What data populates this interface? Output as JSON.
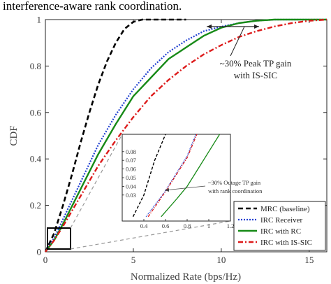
{
  "caption": "interference-aware rank coordination.",
  "chart_data": {
    "type": "line",
    "xlabel": "Normalized Rate (bps/Hz)",
    "ylabel": "CDF",
    "xlim": [
      0,
      16
    ],
    "ylim": [
      0,
      1
    ],
    "xticks": [
      0,
      5,
      10,
      15
    ],
    "yticks": [
      0,
      0.2,
      0.4,
      0.6,
      0.8,
      1
    ],
    "grid": false,
    "legend_position": "bottom-right",
    "series": [
      {
        "name": "MRC (baseline)",
        "color": "#000000",
        "dash": "7,4",
        "width": 2.6,
        "x": [
          0,
          0.5,
          1,
          1.5,
          2,
          2.5,
          3,
          3.5,
          4,
          4.5,
          5,
          5.5,
          6,
          7,
          8
        ],
        "y": [
          0,
          0.08,
          0.2,
          0.33,
          0.47,
          0.6,
          0.72,
          0.82,
          0.9,
          0.96,
          0.99,
          1.0,
          1.0,
          1.0,
          1.0
        ]
      },
      {
        "name": "IRC Receiver",
        "color": "#1f3fd1",
        "dash": "2,2",
        "width": 2.2,
        "x": [
          0,
          0.5,
          1,
          2,
          3,
          4,
          5,
          6,
          7,
          8,
          9,
          10,
          11,
          12,
          13,
          14,
          16
        ],
        "y": [
          0,
          0.06,
          0.14,
          0.3,
          0.46,
          0.59,
          0.7,
          0.79,
          0.86,
          0.91,
          0.95,
          0.97,
          0.985,
          0.995,
          1.0,
          1.0,
          1.0
        ]
      },
      {
        "name": "IRC with RC",
        "color": "#178a17",
        "dash": "",
        "width": 2.4,
        "x": [
          0,
          0.5,
          1,
          2,
          3,
          4,
          5,
          6,
          7,
          8,
          9,
          10,
          11,
          12,
          13,
          14,
          16
        ],
        "y": [
          0,
          0.05,
          0.12,
          0.27,
          0.42,
          0.55,
          0.67,
          0.75,
          0.83,
          0.88,
          0.93,
          0.965,
          0.985,
          0.995,
          1.0,
          1.0,
          1.0
        ]
      },
      {
        "name": "IRC with IS-SIC",
        "color": "#dd1a1a",
        "dash": "7,3,2,3",
        "width": 2.4,
        "x": [
          0,
          0.5,
          1,
          2,
          3,
          4,
          5,
          6,
          7,
          8,
          9,
          10,
          11,
          12,
          13,
          14,
          15,
          16
        ],
        "y": [
          0,
          0.05,
          0.11,
          0.24,
          0.37,
          0.48,
          0.58,
          0.67,
          0.74,
          0.8,
          0.85,
          0.89,
          0.925,
          0.95,
          0.97,
          0.985,
          0.995,
          1.0
        ]
      }
    ],
    "annotations": [
      {
        "text_lines": [
          "~30% Peak TP gain",
          "with IS-SIC"
        ]
      }
    ],
    "inset": {
      "xticks": [
        0.4,
        0.6,
        0.8,
        1,
        1.2
      ],
      "xtick_labels": [
        "0.4",
        "0.6",
        "0.8",
        "1",
        "1.2"
      ],
      "yticks": [
        0.03,
        0.04,
        0.05,
        0.06,
        0.07,
        0.08
      ],
      "ytick_labels": [
        "0.03",
        "0.04",
        "0.05",
        "0.06",
        "0.07",
        "0.08"
      ],
      "xlim": [
        0.2,
        1.2
      ],
      "ylim": [
        0,
        0.1
      ],
      "annotation_lines": [
        "~30% Outage TP gain",
        "with rank coordination"
      ],
      "series": [
        {
          "name": "MRC (baseline)",
          "x": [
            0.3,
            0.4,
            0.5,
            0.6
          ],
          "y": [
            0.005,
            0.03,
            0.07,
            0.1
          ]
        },
        {
          "name": "IRC Receiver",
          "x": [
            0.42,
            0.6,
            0.8,
            0.88
          ],
          "y": [
            0.005,
            0.035,
            0.075,
            0.1
          ]
        },
        {
          "name": "IRC with IS-SIC",
          "x": [
            0.44,
            0.6,
            0.8,
            0.89
          ],
          "y": [
            0.005,
            0.034,
            0.073,
            0.1
          ]
        },
        {
          "name": "IRC with RC",
          "x": [
            0.56,
            0.7,
            0.8,
            0.9,
            1.0,
            1.1
          ],
          "y": [
            0.005,
            0.025,
            0.04,
            0.06,
            0.08,
            0.1
          ]
        }
      ]
    }
  }
}
